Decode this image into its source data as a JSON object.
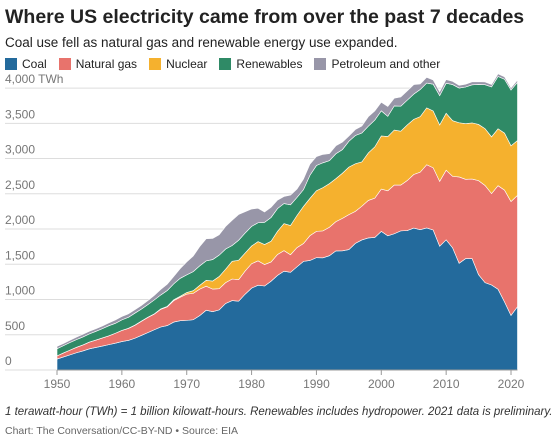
{
  "chart_data": {
    "type": "stacked_area",
    "title": "Where US electricity came from over the past 7 decades",
    "subtitle": "Coal use fell as natural gas and renewable energy use expanded.",
    "note": "1 terawatt-hour (TWh) = 1 billion kilowatt-hours. Renewables includes hydropower. 2021 data is preliminary.",
    "source": "Chart: The Conversation/CC-BY-ND • Source: EIA",
    "x": [
      1950,
      1951,
      1952,
      1953,
      1954,
      1955,
      1956,
      1957,
      1958,
      1959,
      1960,
      1961,
      1962,
      1963,
      1964,
      1965,
      1966,
      1967,
      1968,
      1969,
      1970,
      1971,
      1972,
      1973,
      1974,
      1975,
      1976,
      1977,
      1978,
      1979,
      1980,
      1981,
      1982,
      1983,
      1984,
      1985,
      1986,
      1987,
      1988,
      1989,
      1990,
      1991,
      1992,
      1993,
      1994,
      1995,
      1996,
      1997,
      1998,
      1999,
      2000,
      2001,
      2002,
      2003,
      2004,
      2005,
      2006,
      2007,
      2008,
      2009,
      2010,
      2011,
      2012,
      2013,
      2014,
      2015,
      2016,
      2017,
      2018,
      2019,
      2020,
      2021
    ],
    "series": [
      {
        "name": "Coal",
        "color": "#236a9c",
        "values": [
          155,
          185,
          215,
          245,
          270,
          301,
          320,
          340,
          360,
          380,
          403,
          420,
          450,
          490,
          530,
          571,
          610,
          630,
          680,
          700,
          704,
          713,
          771,
          848,
          828,
          853,
          944,
          985,
          976,
          1075,
          1162,
          1203,
          1192,
          1259,
          1342,
          1402,
          1386,
          1464,
          1541,
          1554,
          1594,
          1592,
          1622,
          1690,
          1691,
          1709,
          1796,
          1845,
          1874,
          1881,
          1966,
          1904,
          1933,
          1974,
          1978,
          2013,
          1991,
          2016,
          1986,
          1756,
          1847,
          1733,
          1514,
          1581,
          1582,
          1352,
          1239,
          1206,
          1146,
          966,
          774,
          899
        ]
      },
      {
        "name": "Natural gas",
        "color": "#e8736c",
        "values": [
          45,
          57,
          67,
          77,
          86,
          95,
          105,
          115,
          125,
          141,
          158,
          170,
          184,
          200,
          215,
          222,
          251,
          265,
          304,
          333,
          373,
          374,
          376,
          341,
          320,
          300,
          295,
          306,
          305,
          329,
          346,
          346,
          305,
          274,
          297,
          292,
          249,
          273,
          253,
          352,
          373,
          382,
          404,
          415,
          460,
          496,
          455,
          479,
          532,
          557,
          601,
          639,
          691,
          650,
          710,
          761,
          816,
          897,
          883,
          921,
          988,
          1014,
          1225,
          1125,
          1127,
          1335,
          1379,
          1297,
          1469,
          1586,
          1617,
          1579
        ]
      },
      {
        "name": "Nuclear",
        "color": "#f5b12e",
        "values": [
          0,
          0,
          0,
          0,
          0,
          0,
          0,
          0,
          0,
          0,
          1,
          2,
          2,
          3,
          3,
          4,
          6,
          8,
          13,
          14,
          22,
          38,
          54,
          83,
          114,
          173,
          191,
          251,
          276,
          255,
          251,
          273,
          283,
          294,
          328,
          384,
          414,
          455,
          527,
          529,
          577,
          613,
          619,
          610,
          640,
          673,
          675,
          629,
          674,
          728,
          754,
          769,
          780,
          764,
          789,
          782,
          787,
          806,
          806,
          799,
          807,
          790,
          769,
          789,
          797,
          797,
          806,
          805,
          807,
          809,
          790,
          778
        ]
      },
      {
        "name": "Renewables",
        "color": "#2f8a66",
        "values": [
          101,
          104,
          108,
          109,
          113,
          117,
          124,
          132,
          144,
          141,
          149,
          155,
          170,
          170,
          180,
          197,
          198,
          225,
          226,
          254,
          251,
          271,
          276,
          276,
          305,
          303,
          287,
          224,
          284,
          284,
          279,
          267,
          315,
          337,
          324,
          284,
          295,
          257,
          238,
          328,
          357,
          353,
          326,
          353,
          336,
          367,
          401,
          410,
          379,
          380,
          356,
          287,
          343,
          355,
          351,
          358,
          385,
          352,
          380,
          417,
          427,
          513,
          492,
          520,
          540,
          567,
          624,
          708,
          742,
          764,
          792,
          826
        ]
      },
      {
        "name": "Petroleum and other",
        "color": "#9896a8",
        "values": [
          34,
          30,
          32,
          35,
          38,
          37,
          36,
          38,
          40,
          47,
          48,
          49,
          48,
          52,
          57,
          65,
          79,
          89,
          104,
          138,
          184,
          220,
          274,
          314,
          300,
          289,
          320,
          358,
          365,
          303,
          246,
          206,
          146,
          144,
          120,
          100,
          137,
          118,
          149,
          158,
          127,
          119,
          100,
          113,
          106,
          75,
          85,
          98,
          135,
          130,
          122,
          140,
          110,
          130,
          132,
          135,
          80,
          82,
          60,
          55,
          52,
          45,
          40,
          40,
          43,
          40,
          38,
          35,
          38,
          35,
          30,
          32
        ]
      }
    ],
    "xlim": [
      1950,
      2021
    ],
    "xticks": [
      1950,
      1960,
      1970,
      1980,
      1990,
      2000,
      2010,
      2020
    ],
    "ylim": [
      0,
      4150
    ],
    "yticks": [
      0,
      500,
      {
        "value": 1000,
        "label": "1,000"
      },
      {
        "value": 1500,
        "label": "1,500"
      },
      {
        "value": 2000,
        "label": "2,000"
      },
      {
        "value": 2500,
        "label": "2,500"
      },
      {
        "value": 3000,
        "label": "3,000"
      },
      {
        "value": 3500,
        "label": "3,500"
      },
      {
        "value": 4000,
        "label": "4,000 TWh"
      }
    ],
    "grid": true
  }
}
